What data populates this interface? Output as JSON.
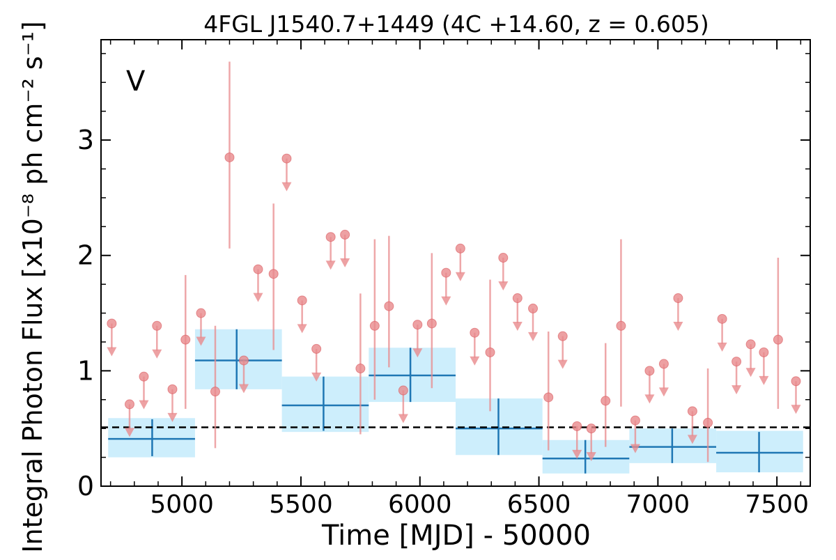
{
  "chart_data": {
    "type": "scatter",
    "title": "4FGL J1540.7+1449 (4C +14.60, z = 0.605)",
    "xlabel": "Time [MJD] - 50000",
    "ylabel": "Integral Photon Flux [x10⁻⁸ ph cm⁻² s⁻¹]",
    "annotation": "V",
    "xlim": [
      4660,
      7640
    ],
    "ylim": [
      0,
      3.87
    ],
    "xticks": [
      5000,
      5500,
      6000,
      6500,
      7000,
      7500
    ],
    "yticks": [
      0,
      1,
      2,
      3
    ],
    "reference_level": 0.51,
    "colors": {
      "points": "#e8898c",
      "bins": "#1f77b4",
      "bin_fill": "#cdeefc",
      "annotation": "#d62728",
      "reference": "#000000"
    },
    "detections": [
      {
        "x": 5015,
        "y": 1.27,
        "lo": 0.67,
        "hi": 1.83
      },
      {
        "x": 5140,
        "y": 0.82,
        "lo": 0.33,
        "hi": 1.39
      },
      {
        "x": 5200,
        "y": 2.85,
        "lo": 2.06,
        "hi": 3.68
      },
      {
        "x": 5385,
        "y": 1.84,
        "lo": 1.18,
        "hi": 2.45
      },
      {
        "x": 5750,
        "y": 1.02,
        "lo": 0.45,
        "hi": 1.67
      },
      {
        "x": 5810,
        "y": 1.39,
        "lo": 0.75,
        "hi": 2.14
      },
      {
        "x": 5870,
        "y": 1.56,
        "lo": 1.03,
        "hi": 2.17
      },
      {
        "x": 6050,
        "y": 1.41,
        "lo": 0.85,
        "hi": 2.02
      },
      {
        "x": 6295,
        "y": 1.16,
        "lo": 0.65,
        "hi": 1.79
      },
      {
        "x": 6540,
        "y": 0.77,
        "lo": 0.31,
        "hi": 1.34
      },
      {
        "x": 6780,
        "y": 0.74,
        "lo": 0.34,
        "hi": 1.24
      },
      {
        "x": 6845,
        "y": 1.39,
        "lo": 0.69,
        "hi": 2.14
      },
      {
        "x": 7210,
        "y": 0.55,
        "lo": 0.21,
        "hi": 1.02
      },
      {
        "x": 7505,
        "y": 1.27,
        "lo": 0.67,
        "hi": 1.98
      }
    ],
    "upper_limits": [
      {
        "x": 4705,
        "y": 1.41
      },
      {
        "x": 4780,
        "y": 0.71
      },
      {
        "x": 4840,
        "y": 0.95
      },
      {
        "x": 4895,
        "y": 1.39
      },
      {
        "x": 4960,
        "y": 0.84
      },
      {
        "x": 5080,
        "y": 1.5
      },
      {
        "x": 5260,
        "y": 1.09
      },
      {
        "x": 5320,
        "y": 1.88
      },
      {
        "x": 5440,
        "y": 2.84
      },
      {
        "x": 5505,
        "y": 1.61
      },
      {
        "x": 5565,
        "y": 1.19
      },
      {
        "x": 5625,
        "y": 2.16
      },
      {
        "x": 5685,
        "y": 2.18
      },
      {
        "x": 5930,
        "y": 0.83
      },
      {
        "x": 5990,
        "y": 1.4
      },
      {
        "x": 6110,
        "y": 1.85
      },
      {
        "x": 6170,
        "y": 2.06
      },
      {
        "x": 6230,
        "y": 1.33
      },
      {
        "x": 6350,
        "y": 1.98
      },
      {
        "x": 6410,
        "y": 1.63
      },
      {
        "x": 6475,
        "y": 1.54
      },
      {
        "x": 6600,
        "y": 1.3
      },
      {
        "x": 6660,
        "y": 0.52
      },
      {
        "x": 6720,
        "y": 0.5
      },
      {
        "x": 6905,
        "y": 0.57
      },
      {
        "x": 6965,
        "y": 1.0
      },
      {
        "x": 7025,
        "y": 1.06
      },
      {
        "x": 7085,
        "y": 1.63
      },
      {
        "x": 7145,
        "y": 0.65
      },
      {
        "x": 7270,
        "y": 1.45
      },
      {
        "x": 7330,
        "y": 1.08
      },
      {
        "x": 7390,
        "y": 1.23
      },
      {
        "x": 7445,
        "y": 1.16
      },
      {
        "x": 7580,
        "y": 0.91
      }
    ],
    "bins": [
      {
        "x0": 4690,
        "x1": 5055,
        "xc": 4875,
        "y": 0.41,
        "lo": 0.26,
        "hi": 0.58,
        "fill_lo": 0.25,
        "fill_hi": 0.59
      },
      {
        "x0": 5055,
        "x1": 5420,
        "xc": 5230,
        "y": 1.09,
        "lo": 0.84,
        "hi": 1.36,
        "fill_lo": 0.84,
        "fill_hi": 1.36
      },
      {
        "x0": 5420,
        "x1": 5785,
        "xc": 5595,
        "y": 0.7,
        "lo": 0.48,
        "hi": 0.95,
        "fill_lo": 0.47,
        "fill_hi": 0.95
      },
      {
        "x0": 5785,
        "x1": 6150,
        "xc": 5960,
        "y": 0.96,
        "lo": 0.73,
        "hi": 1.2,
        "fill_lo": 0.73,
        "fill_hi": 1.2
      },
      {
        "x0": 6150,
        "x1": 6515,
        "xc": 6330,
        "y": 0.5,
        "lo": 0.27,
        "hi": 0.76,
        "fill_lo": 0.27,
        "fill_hi": 0.76
      },
      {
        "x0": 6515,
        "x1": 6880,
        "xc": 6695,
        "y": 0.24,
        "lo": 0.11,
        "hi": 0.4,
        "fill_lo": 0.11,
        "fill_hi": 0.4
      },
      {
        "x0": 6880,
        "x1": 7245,
        "xc": 7060,
        "y": 0.34,
        "lo": 0.2,
        "hi": 0.5,
        "fill_lo": 0.2,
        "fill_hi": 0.5
      },
      {
        "x0": 7245,
        "x1": 7610,
        "xc": 7425,
        "y": 0.29,
        "lo": 0.12,
        "hi": 0.47,
        "fill_lo": 0.12,
        "fill_hi": 0.48
      }
    ]
  }
}
